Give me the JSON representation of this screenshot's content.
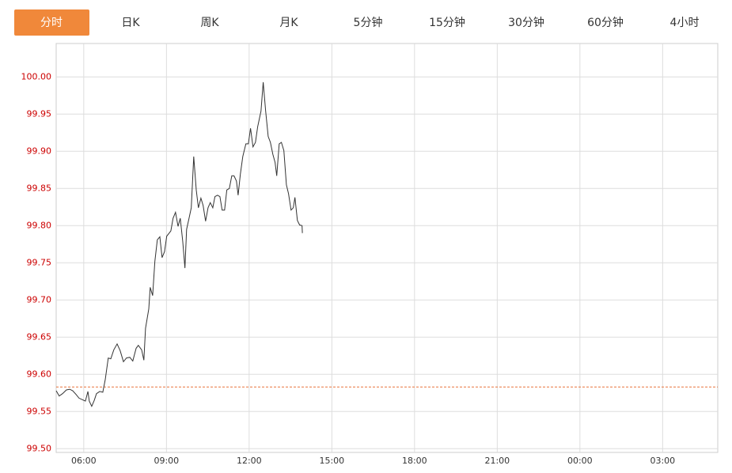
{
  "tabs": [
    "分时",
    "日K",
    "周K",
    "月K",
    "5分钟",
    "15分钟",
    "30分钟",
    "60分钟",
    "4小时"
  ],
  "active_tab": 0,
  "chart_data": {
    "type": "line",
    "x": [
      5.0,
      5.11,
      5.23,
      5.37,
      5.49,
      5.6,
      5.72,
      5.83,
      5.95,
      6.06,
      6.15,
      6.2,
      6.29,
      6.38,
      6.46,
      6.58,
      6.69,
      6.78,
      6.89,
      6.98,
      7.09,
      7.21,
      7.32,
      7.44,
      7.55,
      7.67,
      7.78,
      7.9,
      7.98,
      8.1,
      8.18,
      8.24,
      8.36,
      8.41,
      8.5,
      8.58,
      8.67,
      8.76,
      8.84,
      8.93,
      9.01,
      9.1,
      9.16,
      9.24,
      9.33,
      9.42,
      9.5,
      9.59,
      9.67,
      9.73,
      9.82,
      9.9,
      9.99,
      10.08,
      10.16,
      10.25,
      10.33,
      10.42,
      10.51,
      10.59,
      10.68,
      10.76,
      10.85,
      10.94,
      11.02,
      11.11,
      11.19,
      11.28,
      11.37,
      11.45,
      11.54,
      11.6,
      11.68,
      11.77,
      11.88,
      11.97,
      12.05,
      12.14,
      12.23,
      12.31,
      12.43,
      12.51,
      12.6,
      12.69,
      12.77,
      12.86,
      12.94,
      13.0,
      13.09,
      13.17,
      13.26,
      13.35,
      13.43,
      13.52,
      13.6,
      13.66,
      13.75,
      13.83,
      13.92,
      13.93
    ],
    "series": [
      {
        "color": "#333333",
        "values": [
          99.578,
          99.571,
          99.574,
          99.579,
          99.58,
          99.578,
          99.573,
          99.568,
          99.566,
          99.564,
          99.577,
          99.564,
          99.557,
          99.565,
          99.574,
          99.577,
          99.576,
          99.593,
          99.622,
          99.621,
          99.633,
          99.641,
          99.632,
          99.617,
          99.622,
          99.623,
          99.618,
          99.635,
          99.639,
          99.633,
          99.619,
          99.662,
          99.688,
          99.717,
          99.706,
          99.752,
          99.781,
          99.785,
          99.757,
          99.765,
          99.786,
          99.79,
          99.793,
          99.81,
          99.818,
          99.799,
          99.81,
          99.779,
          99.743,
          99.795,
          99.81,
          99.824,
          99.893,
          99.848,
          99.824,
          99.837,
          99.827,
          99.806,
          99.824,
          99.831,
          99.824,
          99.839,
          99.841,
          99.839,
          99.821,
          99.821,
          99.848,
          99.85,
          99.867,
          99.867,
          99.86,
          99.841,
          99.869,
          99.893,
          99.91,
          99.91,
          99.931,
          99.906,
          99.912,
          99.933,
          99.954,
          99.993,
          99.954,
          99.92,
          99.912,
          99.896,
          99.885,
          99.867,
          99.91,
          99.912,
          99.901,
          99.855,
          99.843,
          99.821,
          99.824,
          99.838,
          99.807,
          99.801,
          99.8,
          99.79
        ]
      }
    ],
    "reference_line": {
      "value": 99.583,
      "color": "#e8743b"
    },
    "xlim": [
      5,
      29
    ],
    "xticks": [
      {
        "value": 6,
        "label": "06:00"
      },
      {
        "value": 9,
        "label": "09:00"
      },
      {
        "value": 12,
        "label": "12:00"
      },
      {
        "value": 15,
        "label": "15:00"
      },
      {
        "value": 18,
        "label": "18:00"
      },
      {
        "value": 21,
        "label": "21:00"
      },
      {
        "value": 24,
        "label": "00:00"
      },
      {
        "value": 27,
        "label": "03:00"
      }
    ],
    "ylim": [
      99.495,
      100.045
    ],
    "yticks": [
      {
        "value": 99.5,
        "label": "99.50"
      },
      {
        "value": 99.55,
        "label": "99.55"
      },
      {
        "value": 99.6,
        "label": "99.60"
      },
      {
        "value": 99.65,
        "label": "99.65"
      },
      {
        "value": 99.7,
        "label": "99.70"
      },
      {
        "value": 99.75,
        "label": "99.75"
      },
      {
        "value": 99.8,
        "label": "99.80"
      },
      {
        "value": 99.85,
        "label": "99.85"
      },
      {
        "value": 99.9,
        "label": "99.90"
      },
      {
        "value": 99.95,
        "label": "99.95"
      },
      {
        "value": 100,
        "label": "100.00"
      }
    ],
    "grid": true
  }
}
